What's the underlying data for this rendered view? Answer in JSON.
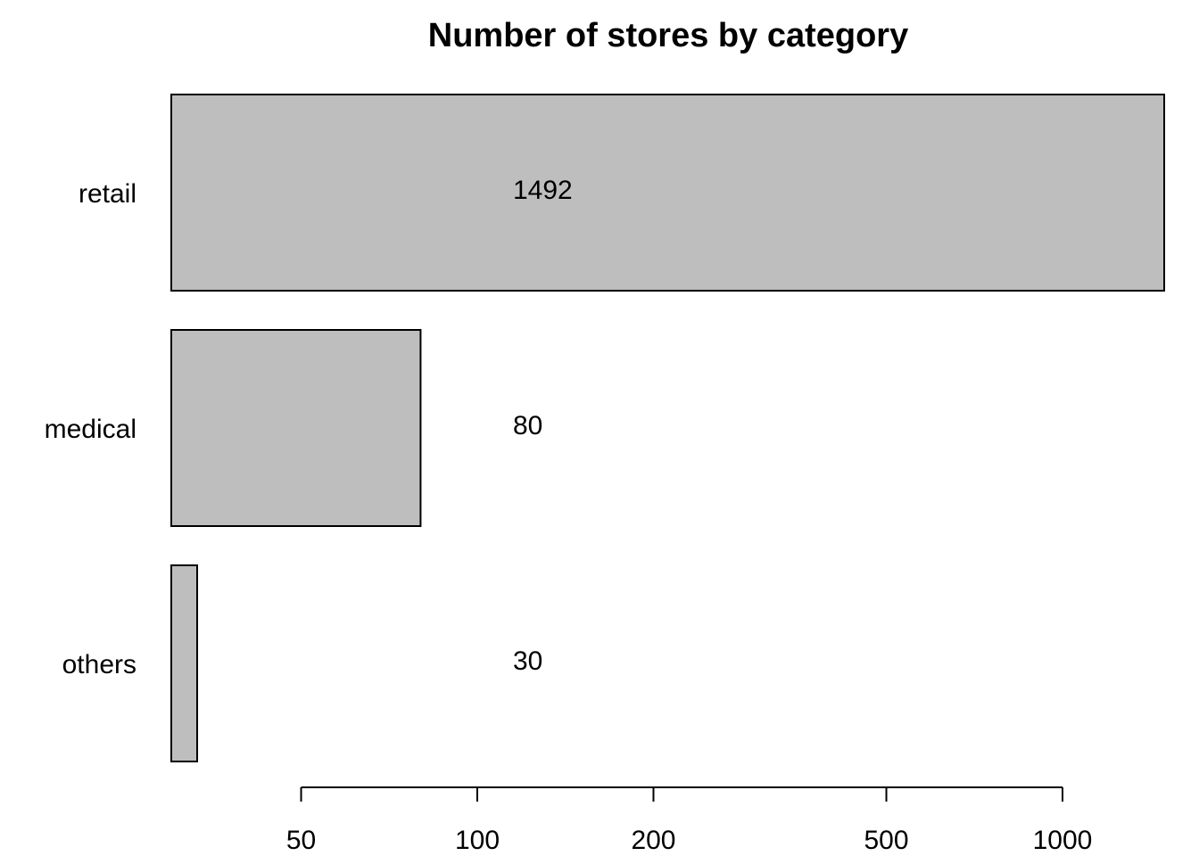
{
  "chart_data": {
    "type": "bar",
    "orientation": "horizontal",
    "title": "Number of stores by category",
    "xlabel": "",
    "ylabel": "",
    "x_scale": "log",
    "xlim": [
      30,
      1492
    ],
    "categories": [
      "retail",
      "medical",
      "others"
    ],
    "values": [
      1492,
      80,
      30
    ],
    "data_labels": [
      "1492",
      "80",
      "30"
    ],
    "x_ticks": [
      50,
      100,
      200,
      500,
      1000
    ],
    "x_tick_labels": [
      "50",
      "100",
      "200",
      "500",
      "1000"
    ],
    "grid": false,
    "legend": "none",
    "bar_color": "#bebebe",
    "bar_border_color": "#000000"
  }
}
